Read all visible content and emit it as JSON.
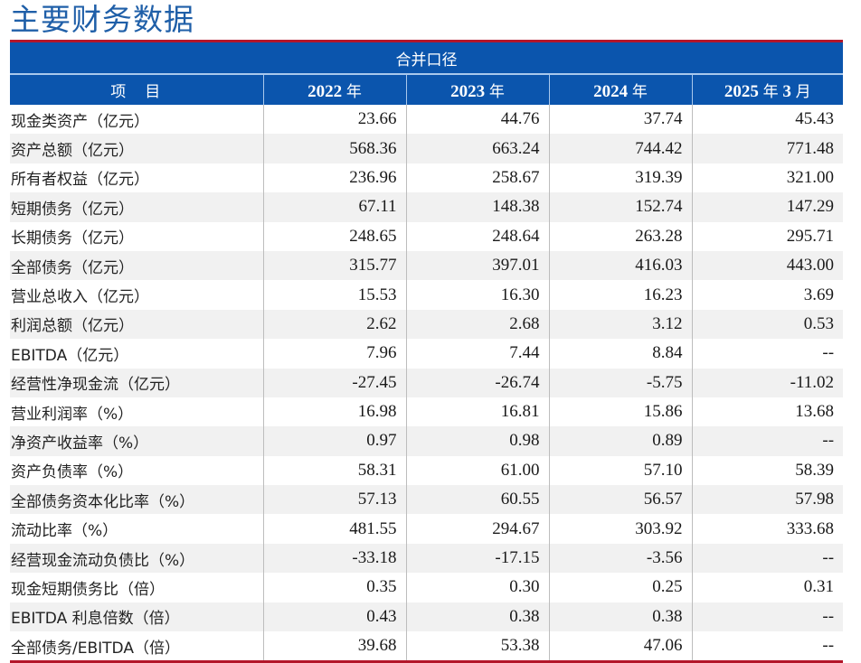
{
  "title": "主要财务数据",
  "table": {
    "group_header": "合并口径",
    "columns": [
      "项　目",
      "2022 年",
      "2023 年",
      "2024 年",
      "2025 年 3 月"
    ],
    "column_parts": [
      {
        "year": "2022",
        "suffix": "年"
      },
      {
        "year": "2023",
        "suffix": "年"
      },
      {
        "year": "2024",
        "suffix": "年"
      },
      {
        "year": "2025",
        "suffix": "年",
        "month": "3",
        "month_suffix": "月"
      }
    ],
    "rows": [
      {
        "label": "现金类资产（亿元）",
        "values": [
          "23.66",
          "44.76",
          "37.74",
          "45.43"
        ]
      },
      {
        "label": "资产总额（亿元）",
        "values": [
          "568.36",
          "663.24",
          "744.42",
          "771.48"
        ]
      },
      {
        "label": "所有者权益（亿元）",
        "values": [
          "236.96",
          "258.67",
          "319.39",
          "321.00"
        ]
      },
      {
        "label": "短期债务（亿元）",
        "values": [
          "67.11",
          "148.38",
          "152.74",
          "147.29"
        ]
      },
      {
        "label": "长期债务（亿元）",
        "values": [
          "248.65",
          "248.64",
          "263.28",
          "295.71"
        ]
      },
      {
        "label": "全部债务（亿元）",
        "values": [
          "315.77",
          "397.01",
          "416.03",
          "443.00"
        ]
      },
      {
        "label": "营业总收入（亿元）",
        "values": [
          "15.53",
          "16.30",
          "16.23",
          "3.69"
        ]
      },
      {
        "label": "利润总额（亿元）",
        "values": [
          "2.62",
          "2.68",
          "3.12",
          "0.53"
        ]
      },
      {
        "label": "EBITDA（亿元）",
        "values": [
          "7.96",
          "7.44",
          "8.84",
          "--"
        ]
      },
      {
        "label": "经营性净现金流（亿元）",
        "values": [
          "-27.45",
          "-26.74",
          "-5.75",
          "-11.02"
        ]
      },
      {
        "label": "营业利润率（%）",
        "values": [
          "16.98",
          "16.81",
          "15.86",
          "13.68"
        ]
      },
      {
        "label": "净资产收益率（%）",
        "values": [
          "0.97",
          "0.98",
          "0.89",
          "--"
        ]
      },
      {
        "label": "资产负债率（%）",
        "values": [
          "58.31",
          "61.00",
          "57.10",
          "58.39"
        ]
      },
      {
        "label": "全部债务资本化比率（%）",
        "values": [
          "57.13",
          "60.55",
          "56.57",
          "57.98"
        ]
      },
      {
        "label": "流动比率（%）",
        "values": [
          "481.55",
          "294.67",
          "303.92",
          "333.68"
        ]
      },
      {
        "label": "经营现金流动负债比（%）",
        "values": [
          "-33.18",
          "-17.15",
          "-3.56",
          "--"
        ]
      },
      {
        "label": "现金短期债务比（倍）",
        "values": [
          "0.35",
          "0.30",
          "0.25",
          "0.31"
        ]
      },
      {
        "label": "EBITDA 利息倍数（倍）",
        "values": [
          "0.43",
          "0.38",
          "0.38",
          "--"
        ]
      },
      {
        "label": "全部债务/EBITDA（倍）",
        "values": [
          "39.68",
          "53.38",
          "47.06",
          "--"
        ]
      }
    ]
  },
  "colors": {
    "title": "#1f5fa8",
    "header_bg": "#0b55ad",
    "header_text": "#ffffff",
    "rule_red": "#b3162a",
    "alt_row_bg": "#f1f1f1"
  }
}
